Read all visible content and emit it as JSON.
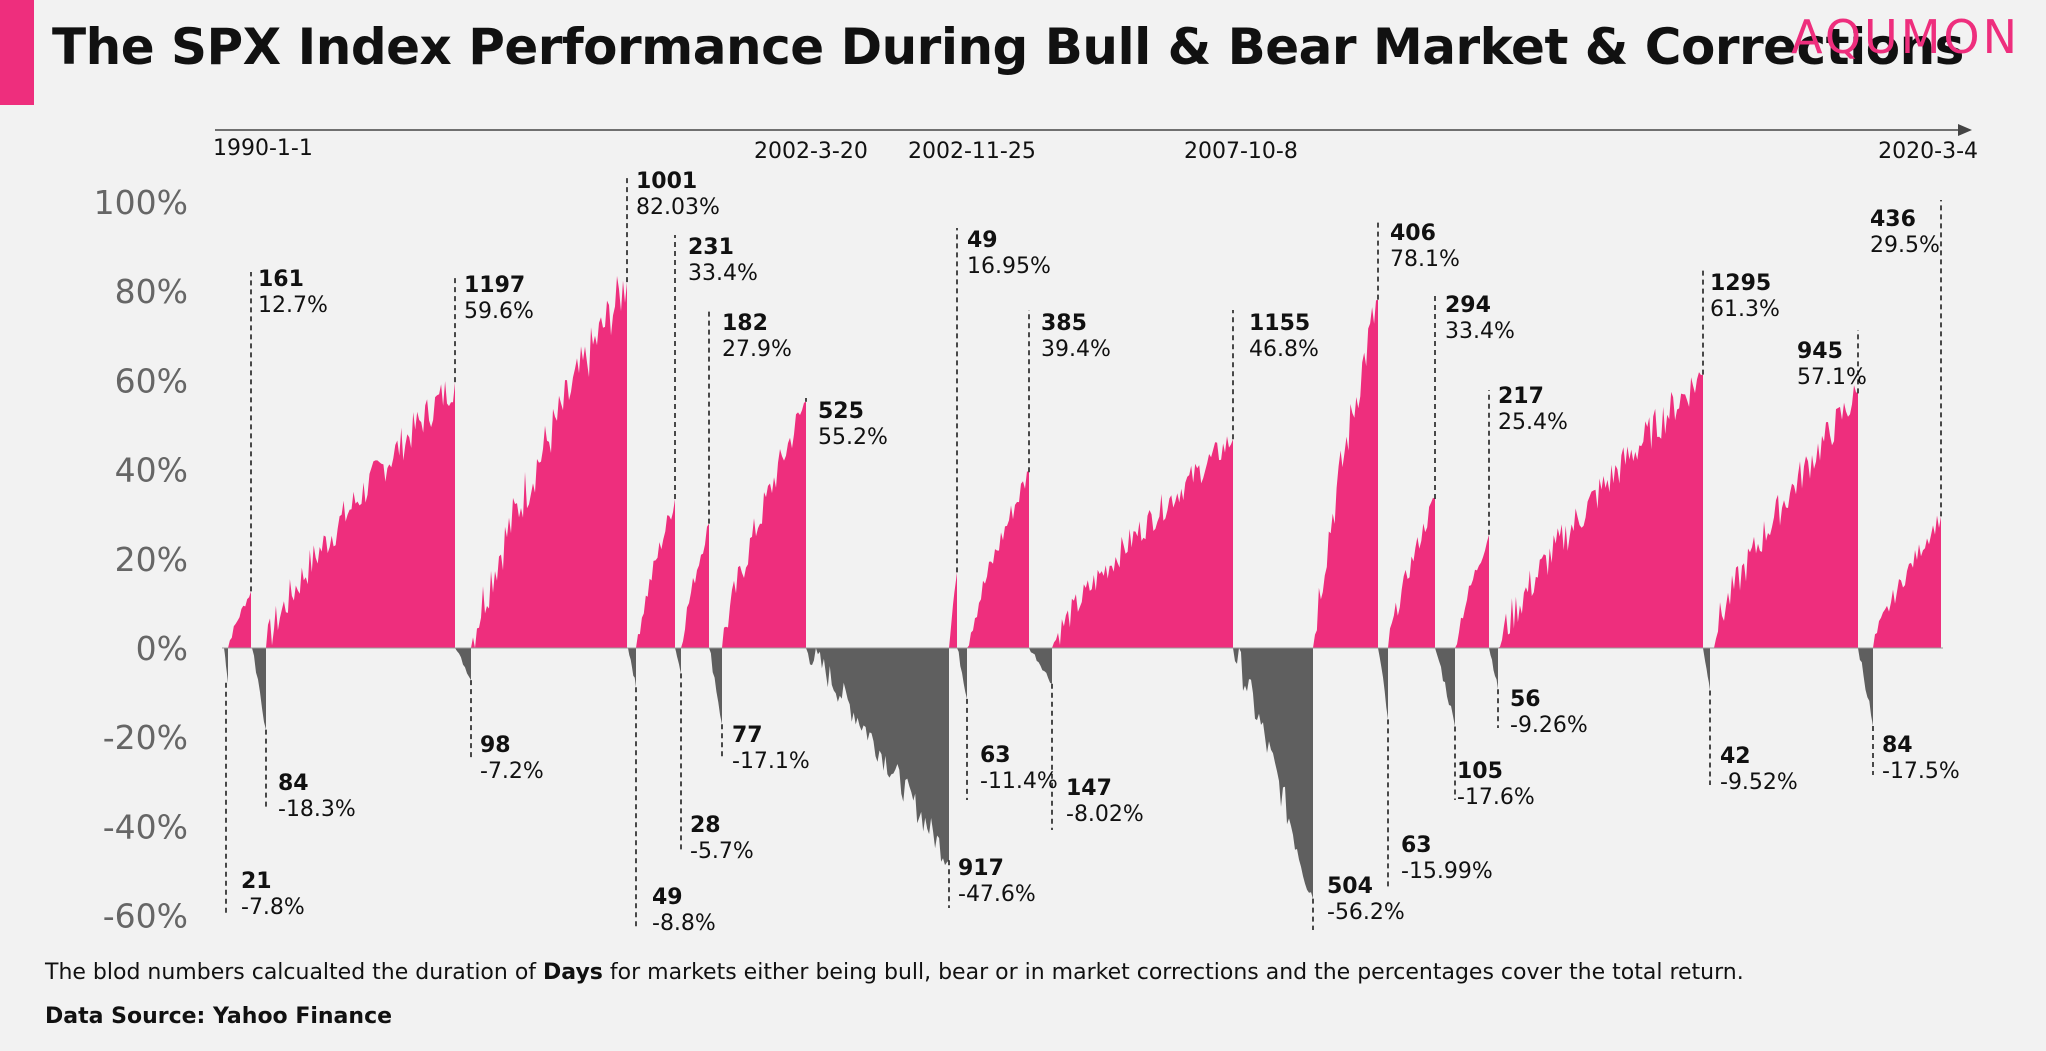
{
  "title": "The SPX Index Performance During Bull & Bear Market & Corrections",
  "logo_text": "AQUMON",
  "note": {
    "before": "The blod numbers calcualted the duration of ",
    "bold": "Days",
    "after": " for markets either being bull, bear or in market corrections and the percentages cover the total return."
  },
  "source": "Data Source: Yahoo Finance",
  "colors": {
    "accent": "#ee2e7d",
    "bear": "#5f5f5f",
    "text": "#111111",
    "axis": "#555555"
  },
  "chart_data": {
    "type": "area",
    "ylim": [
      -60,
      100
    ],
    "yticks": [
      100,
      80,
      60,
      40,
      20,
      0,
      -20,
      -40,
      -60
    ],
    "ytick_labels": [
      "100%",
      "80%",
      "60%",
      "40%",
      "20%",
      "0%",
      "-20%",
      "-40%",
      "-60%"
    ],
    "timeline_dates": [
      "1990-1-1",
      "2002-3-20",
      "2002-11-25",
      "2007-10-8",
      "2020-3-4"
    ],
    "periods": [
      {
        "kind": "bear",
        "days": 21,
        "return": -7.8,
        "label_pct": "-7.8%"
      },
      {
        "kind": "bull",
        "days": 161,
        "return": 12.7,
        "label_pct": "12.7%"
      },
      {
        "kind": "bear",
        "days": 84,
        "return": -18.3,
        "label_pct": "-18.3%"
      },
      {
        "kind": "bull",
        "days": 1197,
        "return": 59.6,
        "label_pct": "59.6%"
      },
      {
        "kind": "bear",
        "days": 98,
        "return": -7.2,
        "label_pct": "-7.2%"
      },
      {
        "kind": "bull",
        "days": 1001,
        "return": 82.03,
        "label_pct": "82.03%"
      },
      {
        "kind": "bear",
        "days": 49,
        "return": -8.8,
        "label_pct": "-8.8%"
      },
      {
        "kind": "bull",
        "days": 231,
        "return": 33.4,
        "label_pct": "33.4%"
      },
      {
        "kind": "bear",
        "days": 28,
        "return": -5.7,
        "label_pct": "-5.7%"
      },
      {
        "kind": "bull",
        "days": 182,
        "return": 27.9,
        "label_pct": "27.9%"
      },
      {
        "kind": "bear",
        "days": 77,
        "return": -17.1,
        "label_pct": "-17.1%"
      },
      {
        "kind": "bull",
        "days": 525,
        "return": 55.2,
        "label_pct": "55.2%"
      },
      {
        "kind": "bear",
        "days": 917,
        "return": -47.6,
        "label_pct": "-47.6%"
      },
      {
        "kind": "bull",
        "days": 49,
        "return": 16.95,
        "label_pct": "16.95%"
      },
      {
        "kind": "bear",
        "days": 63,
        "return": -11.4,
        "label_pct": "-11.4%"
      },
      {
        "kind": "bull",
        "days": 385,
        "return": 39.4,
        "label_pct": "39.4%"
      },
      {
        "kind": "bear",
        "days": 147,
        "return": -8.02,
        "label_pct": "-8.02%"
      },
      {
        "kind": "bull",
        "days": 1155,
        "return": 46.8,
        "label_pct": "46.8%"
      },
      {
        "kind": "bear",
        "days": 504,
        "return": -56.2,
        "label_pct": "-56.2%"
      },
      {
        "kind": "bull",
        "days": 406,
        "return": 78.1,
        "label_pct": "78.1%"
      },
      {
        "kind": "bear",
        "days": 63,
        "return": -15.99,
        "label_pct": "-15.99%"
      },
      {
        "kind": "bull",
        "days": 294,
        "return": 33.4,
        "label_pct": "33.4%"
      },
      {
        "kind": "bear",
        "days": 105,
        "return": -17.6,
        "label_pct": "-17.6%"
      },
      {
        "kind": "bull",
        "days": 217,
        "return": 25.4,
        "label_pct": "25.4%"
      },
      {
        "kind": "bear",
        "days": 56,
        "return": -9.26,
        "label_pct": "-9.26%"
      },
      {
        "kind": "bull",
        "days": 1295,
        "return": 61.3,
        "label_pct": "61.3%"
      },
      {
        "kind": "bear",
        "days": 42,
        "return": -9.52,
        "label_pct": "-9.52%"
      },
      {
        "kind": "bull",
        "days": 945,
        "return": 57.1,
        "label_pct": "57.1%"
      },
      {
        "kind": "bear",
        "days": 84,
        "return": -17.5,
        "label_pct": "-17.5%"
      },
      {
        "kind": "bull",
        "days": 436,
        "return": 29.5,
        "label_pct": "29.5%"
      }
    ]
  }
}
